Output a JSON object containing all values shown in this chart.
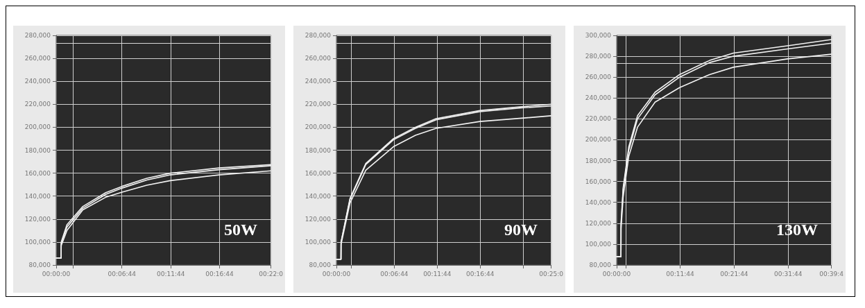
{
  "chart_data": [
    {
      "type": "line",
      "annotations": [
        "50W"
      ],
      "x": [
        0,
        0.0085,
        0.0086,
        0.0183,
        0.0455,
        0.0845,
        0.1125,
        0.1547,
        0.1947,
        0.278,
        0.3667
      ],
      "series": [
        {
          "color": "#f2f2f2",
          "values": [
            86000,
            86000,
            100000,
            115000,
            131000,
            143000,
            148500,
            155500,
            160000,
            164500,
            167500
          ]
        },
        {
          "color": "#f2f2f2",
          "values": [
            86000,
            86000,
            99000,
            113000,
            129500,
            141500,
            147000,
            154000,
            158500,
            163000,
            166500
          ]
        },
        {
          "color": "#f2f2f2",
          "values": [
            86000,
            86000,
            97000,
            110000,
            128000,
            139000,
            143500,
            149500,
            153500,
            158500,
            162000
          ]
        }
      ],
      "xlim": [
        0,
        0.3667
      ],
      "xticks": [
        {
          "value": 0,
          "label": "00:00:00"
        },
        {
          "value": 0.0289,
          "label": null
        },
        {
          "value": 0.1122,
          "label": "00:06:44"
        },
        {
          "value": 0.1956,
          "label": "00:11:44"
        },
        {
          "value": 0.2789,
          "label": "00:16:44"
        },
        {
          "value": 0.3667,
          "label": "00:22:0"
        }
      ],
      "ylim": [
        80000,
        280000
      ],
      "yticks": [
        {
          "value": 80000,
          "label": "80,000"
        },
        {
          "value": 100000,
          "label": "100,000"
        },
        {
          "value": 120000,
          "label": "120,000"
        },
        {
          "value": 140000,
          "label": "140,000"
        },
        {
          "value": 160000,
          "label": "160,000"
        },
        {
          "value": 180000,
          "label": "180,000"
        },
        {
          "value": 200000,
          "label": "200,000"
        },
        {
          "value": 220000,
          "label": "220,000"
        },
        {
          "value": 240000,
          "label": "240,000"
        },
        {
          "value": 260000,
          "label": "260,000"
        },
        {
          "value": 280000,
          "label": "280,000"
        }
      ],
      "ref_lines": [
        {
          "axis": "y",
          "value": 273000,
          "label": null,
          "color": "#d8d8d8"
        }
      ],
      "grid": true,
      "marker": "none",
      "line_style": "solid"
    },
    {
      "type": "line",
      "annotations": [
        "90W"
      ],
      "x": [
        0,
        0.0088,
        0.009,
        0.0263,
        0.057,
        0.1105,
        0.1533,
        0.1933,
        0.2783,
        0.3633,
        0.4167
      ],
      "series": [
        {
          "color": "#f2f2f2",
          "values": [
            85000,
            85000,
            100000,
            138000,
            168500,
            190000,
            200000,
            207500,
            214500,
            218000,
            220000
          ]
        },
        {
          "color": "#f2f2f2",
          "values": [
            85000,
            85000,
            100000,
            137000,
            167500,
            189000,
            199000,
            206500,
            213500,
            217000,
            218500
          ]
        },
        {
          "color": "#f2f2f2",
          "values": [
            85000,
            85000,
            98000,
            134000,
            162500,
            183000,
            193000,
            199000,
            205000,
            208000,
            210000
          ]
        }
      ],
      "xlim": [
        0,
        0.4167
      ],
      "xticks": [
        {
          "value": 0,
          "label": "00:00:00"
        },
        {
          "value": 0.0289,
          "label": null
        },
        {
          "value": 0.1122,
          "label": "00:06:44"
        },
        {
          "value": 0.1956,
          "label": "00:11:44"
        },
        {
          "value": 0.2789,
          "label": "00:16:44"
        },
        {
          "value": 0.3622,
          "label": null
        },
        {
          "value": 0.4167,
          "label": "00:25:0"
        }
      ],
      "ylim": [
        80000,
        280000
      ],
      "yticks": [
        {
          "value": 80000,
          "label": "80,000"
        },
        {
          "value": 100000,
          "label": "100,000"
        },
        {
          "value": 120000,
          "label": "120,000"
        },
        {
          "value": 140000,
          "label": "140,000"
        },
        {
          "value": 160000,
          "label": "160,000"
        },
        {
          "value": 180000,
          "label": "180,000"
        },
        {
          "value": 200000,
          "label": "200,000"
        },
        {
          "value": 220000,
          "label": "220,000"
        },
        {
          "value": 240000,
          "label": "240,000"
        },
        {
          "value": 260000,
          "label": "260,000"
        },
        {
          "value": 280000,
          "label": "280,000"
        }
      ],
      "ref_lines": [
        {
          "axis": "y",
          "value": 273000,
          "label": null,
          "color": "#d8d8d8"
        }
      ],
      "grid": true,
      "marker": "none",
      "line_style": "solid"
    },
    {
      "type": "line",
      "annotations": [
        "130W"
      ],
      "x": [
        0,
        0.0133,
        0.0135,
        0.02,
        0.0372,
        0.0642,
        0.1183,
        0.194,
        0.2867,
        0.36,
        0.5267,
        0.6622
      ],
      "series": [
        {
          "color": "#f2f2f2",
          "values": [
            88000,
            88000,
            120000,
            154000,
            193000,
            223000,
            245500,
            262500,
            276000,
            283000,
            290000,
            296000
          ]
        },
        {
          "color": "#f2f2f2",
          "values": [
            88000,
            88000,
            118000,
            152000,
            190000,
            220000,
            243000,
            260000,
            274000,
            280000,
            287000,
            292500
          ]
        },
        {
          "color": "#f2f2f2",
          "values": [
            88000,
            88000,
            115000,
            145000,
            184000,
            212000,
            236000,
            250000,
            262500,
            269500,
            277500,
            282000
          ]
        }
      ],
      "xlim": [
        0,
        0.6622
      ],
      "xticks": [
        {
          "value": 0,
          "label": "00:00:00"
        },
        {
          "value": 0.0289,
          "label": null
        },
        {
          "value": 0.1956,
          "label": "00:11:44"
        },
        {
          "value": 0.3622,
          "label": "00:21:44"
        },
        {
          "value": 0.5289,
          "label": "00:31:44"
        },
        {
          "value": 0.6622,
          "label": "00:39:4"
        }
      ],
      "ylim": [
        80000,
        300000
      ],
      "yticks": [
        {
          "value": 80000,
          "label": "80,000"
        },
        {
          "value": 100000,
          "label": "100,000"
        },
        {
          "value": 120000,
          "label": "120,000"
        },
        {
          "value": 140000,
          "label": "140,000"
        },
        {
          "value": 160000,
          "label": "160,000"
        },
        {
          "value": 180000,
          "label": "180,000"
        },
        {
          "value": 200000,
          "label": "200,000"
        },
        {
          "value": 220000,
          "label": "220,000"
        },
        {
          "value": 240000,
          "label": "240,000"
        },
        {
          "value": 260000,
          "label": "260,000"
        },
        {
          "value": 280000,
          "label": "280,000"
        },
        {
          "value": 300000,
          "label": "300,000"
        }
      ],
      "ref_lines": [
        {
          "axis": "y",
          "value": 273000,
          "label": null,
          "color": "#d8d8d8"
        }
      ],
      "grid": true,
      "marker": "none",
      "line_style": "solid"
    }
  ]
}
